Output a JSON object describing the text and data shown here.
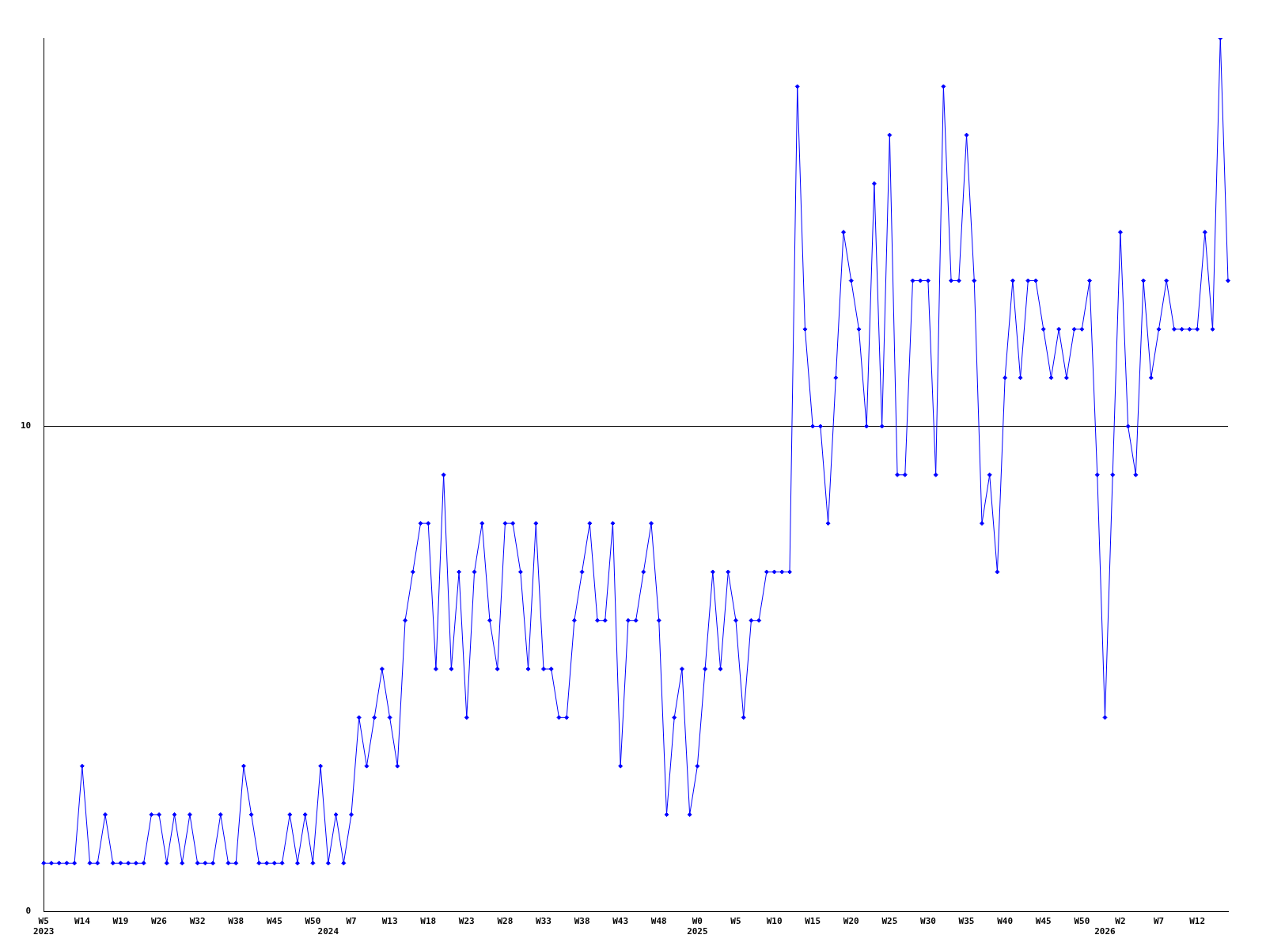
{
  "chart_data": {
    "type": "line",
    "categories": [
      "W5\n2023",
      null,
      null,
      null,
      null,
      "W14",
      null,
      null,
      null,
      null,
      "W19",
      null,
      null,
      null,
      null,
      "W26",
      null,
      null,
      null,
      null,
      "W32",
      null,
      null,
      null,
      null,
      "W38",
      null,
      null,
      null,
      null,
      "W45",
      null,
      null,
      null,
      null,
      "W50",
      null,
      "\n2024",
      null,
      null,
      "W7",
      null,
      null,
      null,
      null,
      "W13",
      null,
      null,
      null,
      null,
      "W18",
      null,
      null,
      null,
      null,
      "W23",
      null,
      null,
      null,
      null,
      "W28",
      null,
      null,
      null,
      null,
      "W33",
      null,
      null,
      null,
      null,
      "W38",
      null,
      null,
      null,
      null,
      "W43",
      null,
      null,
      null,
      null,
      "W48",
      null,
      null,
      null,
      null,
      "W0\n2025",
      null,
      null,
      null,
      null,
      "W5",
      null,
      null,
      null,
      null,
      "W10",
      null,
      null,
      null,
      null,
      "W15",
      null,
      null,
      null,
      null,
      "W20",
      null,
      null,
      null,
      null,
      "W25",
      null,
      null,
      null,
      null,
      "W30",
      null,
      null,
      null,
      null,
      "W35",
      null,
      null,
      null,
      null,
      "W40",
      null,
      null,
      null,
      null,
      "W45",
      null,
      null,
      null,
      null,
      "W50",
      null,
      null,
      "\n2026",
      null,
      "W2",
      null,
      null,
      null,
      null,
      "W7",
      null,
      null,
      null,
      null,
      "W12",
      null,
      null,
      null,
      null
    ],
    "series": [
      {
        "color": "#0000ff",
        "values": [
          1,
          1,
          1,
          1,
          1,
          3,
          1,
          1,
          2,
          1,
          1,
          1,
          1,
          1,
          2,
          2,
          1,
          2,
          1,
          2,
          1,
          1,
          1,
          2,
          1,
          1,
          3,
          2,
          1,
          1,
          1,
          1,
          2,
          1,
          2,
          1,
          3,
          1,
          2,
          1,
          2,
          4,
          3,
          4,
          5,
          4,
          3,
          6,
          7,
          8,
          8,
          5,
          9,
          5,
          7,
          4,
          7,
          8,
          6,
          5,
          8,
          8,
          7,
          5,
          8,
          5,
          5,
          4,
          4,
          6,
          7,
          8,
          6,
          6,
          8,
          3,
          6,
          6,
          7,
          8,
          6,
          2,
          4,
          5,
          2,
          3,
          5,
          7,
          5,
          7,
          6,
          4,
          6,
          6,
          7,
          7,
          7,
          7,
          17,
          12,
          10,
          10,
          8,
          11,
          14,
          13,
          12,
          10,
          15,
          10,
          16,
          9,
          9,
          13,
          13,
          13,
          9,
          17,
          13,
          13,
          16,
          13,
          8,
          9,
          7,
          11,
          13,
          11,
          13,
          13,
          12,
          11,
          12,
          11,
          12,
          12,
          13,
          9,
          4,
          9,
          14,
          10,
          9,
          13,
          11,
          12,
          13,
          12,
          12,
          12,
          12,
          14,
          12,
          18,
          13
        ]
      }
    ],
    "ylim": [
      0,
      18
    ],
    "yticks": [
      0,
      10
    ],
    "grid": "y",
    "legend": false,
    "marker": "diamond",
    "line_style": "solid"
  }
}
